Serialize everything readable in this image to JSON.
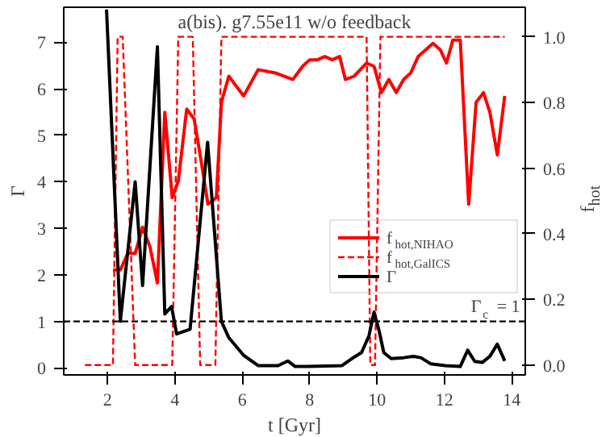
{
  "chart_data": {
    "type": "line",
    "title": "a(bis). g7.55e11 w/o feedback",
    "xlabel": "t [Gyr]",
    "ylabel": "Γ",
    "y2label": "f$_{hot}$",
    "xlim": [
      0.7,
      14.4
    ],
    "xticks": [
      2,
      4,
      6,
      8,
      10,
      12,
      14
    ],
    "ylim": [
      -0.15,
      7.75
    ],
    "yticks": [
      0,
      1,
      2,
      3,
      4,
      5,
      6,
      7
    ],
    "y2lim": [
      -0.03,
      1.09
    ],
    "y2ticks": [
      {
        "value": 0,
        "label": "0.0"
      },
      {
        "value": 0.2,
        "label": "0.2"
      },
      {
        "value": 0.4,
        "label": "0.4"
      },
      {
        "value": 0.6,
        "label": "0.6"
      },
      {
        "value": 0.8,
        "label": "0.8"
      },
      {
        "value": 1,
        "label": "1.0"
      }
    ],
    "grid": false,
    "legend": "right",
    "ref_lines": [
      {
        "axis": "y",
        "value": 1,
        "label": "Γ$_{c}$ = 1",
        "color": "#000000",
        "line_style": "dashed"
      }
    ],
    "series": [
      {
        "name": "f$_{hot,NIHAO}$",
        "color": "#ff0000",
        "axis": "y2",
        "line_style": "solid",
        "x": [
          2.16,
          2.38,
          2.6,
          2.82,
          3.04,
          3.26,
          3.48,
          3.7,
          3.92,
          4.1,
          4.35,
          4.57,
          4.75,
          4.98,
          5.23,
          5.38,
          5.6,
          6.04,
          6.47,
          6.98,
          7.5,
          7.79,
          8.0,
          8.23,
          8.45,
          8.67,
          8.89,
          9.06,
          9.32,
          9.69,
          9.91,
          10.13,
          10.35,
          10.57,
          10.79,
          11.0,
          11.22,
          11.44,
          11.66,
          11.88,
          12.06,
          12.25,
          12.47,
          12.72,
          12.94,
          13.16,
          13.35,
          13.57,
          13.79
        ],
        "values": [
          0.29,
          0.29,
          0.34,
          0.34,
          0.42,
          0.36,
          0.25,
          0.77,
          0.51,
          0.56,
          0.78,
          0.75,
          0.64,
          0.49,
          0.51,
          0.8,
          0.88,
          0.82,
          0.9,
          0.89,
          0.87,
          0.91,
          0.93,
          0.93,
          0.94,
          0.93,
          0.94,
          0.87,
          0.88,
          0.92,
          0.91,
          0.83,
          0.87,
          0.83,
          0.87,
          0.89,
          0.94,
          0.96,
          0.98,
          0.96,
          0.92,
          0.99,
          0.99,
          0.49,
          0.8,
          0.83,
          0.77,
          0.64,
          0.82
        ]
      },
      {
        "name": "f$_{hot,GalICS}$",
        "color": "#ff0000",
        "axis": "y2",
        "line_style": "dashed",
        "x": [
          1.33,
          2.16,
          2.3,
          2.45,
          2.82,
          3.92,
          4.1,
          4.53,
          4.75,
          5.2,
          5.38,
          9.69,
          9.8,
          9.94,
          10.1,
          13.79
        ],
        "values": [
          0,
          0,
          1,
          1,
          0,
          0,
          1,
          1,
          0,
          0,
          1,
          1,
          0,
          0,
          1,
          1
        ]
      },
      {
        "name": "Γ",
        "color": "#000000",
        "axis": "y",
        "line_style": "solid",
        "x": [
          1.97,
          2.38,
          2.82,
          3.04,
          3.48,
          3.7,
          3.9,
          4.05,
          4.45,
          4.97,
          5.38,
          5.6,
          6.04,
          6.47,
          7.06,
          7.35,
          7.57,
          7.93,
          8.96,
          9.25,
          9.54,
          9.76,
          9.91,
          10.06,
          10.2,
          10.42,
          10.79,
          11.08,
          11.3,
          11.59,
          12.03,
          12.47,
          12.69,
          12.9,
          13.13,
          13.35,
          13.57,
          13.79
        ],
        "values": [
          7.7,
          1.0,
          4.0,
          1.77,
          6.9,
          1.16,
          1.32,
          0.73,
          0.83,
          4.85,
          1.0,
          0.65,
          0.27,
          0.05,
          0.05,
          0.15,
          0.03,
          0.03,
          0.05,
          0.2,
          0.33,
          0.69,
          1.2,
          0.8,
          0.33,
          0.2,
          0.22,
          0.25,
          0.22,
          0.09,
          0.05,
          0.03,
          0.38,
          0.14,
          0.12,
          0.25,
          0.51,
          0.15
        ]
      }
    ]
  }
}
